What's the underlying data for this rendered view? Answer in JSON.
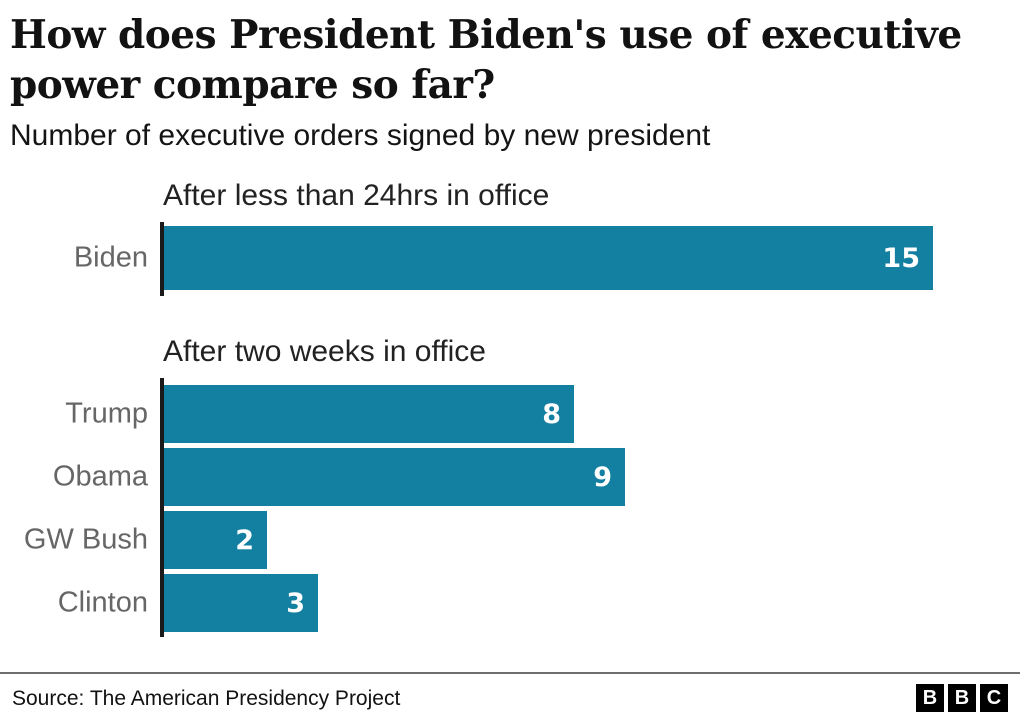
{
  "title_lines": [
    "How does President Biden's use of executive",
    "power compare so far?"
  ],
  "subtitle": "Number of executive orders signed by new president",
  "chart_data": [
    {
      "type": "bar",
      "orientation": "horizontal",
      "title": "After less than 24hrs in office",
      "categories": [
        "Biden"
      ],
      "values": [
        15
      ],
      "xlim": [
        0,
        15
      ],
      "grid": false,
      "value_labels": "inside-end"
    },
    {
      "type": "bar",
      "orientation": "horizontal",
      "title": "After two weeks in office",
      "categories": [
        "Trump",
        "Obama",
        "GW Bush",
        "Clinton"
      ],
      "values": [
        8,
        9,
        2,
        3
      ],
      "xlim": [
        0,
        15
      ],
      "grid": false,
      "value_labels": "inside-end"
    }
  ],
  "footer": {
    "source": "Source: The American Presidency Project",
    "logo_letters": [
      "B",
      "B",
      "C"
    ]
  },
  "colors": {
    "bar": "#1380A1",
    "bar_value_text": "#ffffff",
    "category_label": "#666666",
    "heading": "#222222",
    "axis": "#1a1a1a",
    "divider": "#6e6e6e",
    "logo_box": "#000000",
    "background": "#ffffff"
  }
}
